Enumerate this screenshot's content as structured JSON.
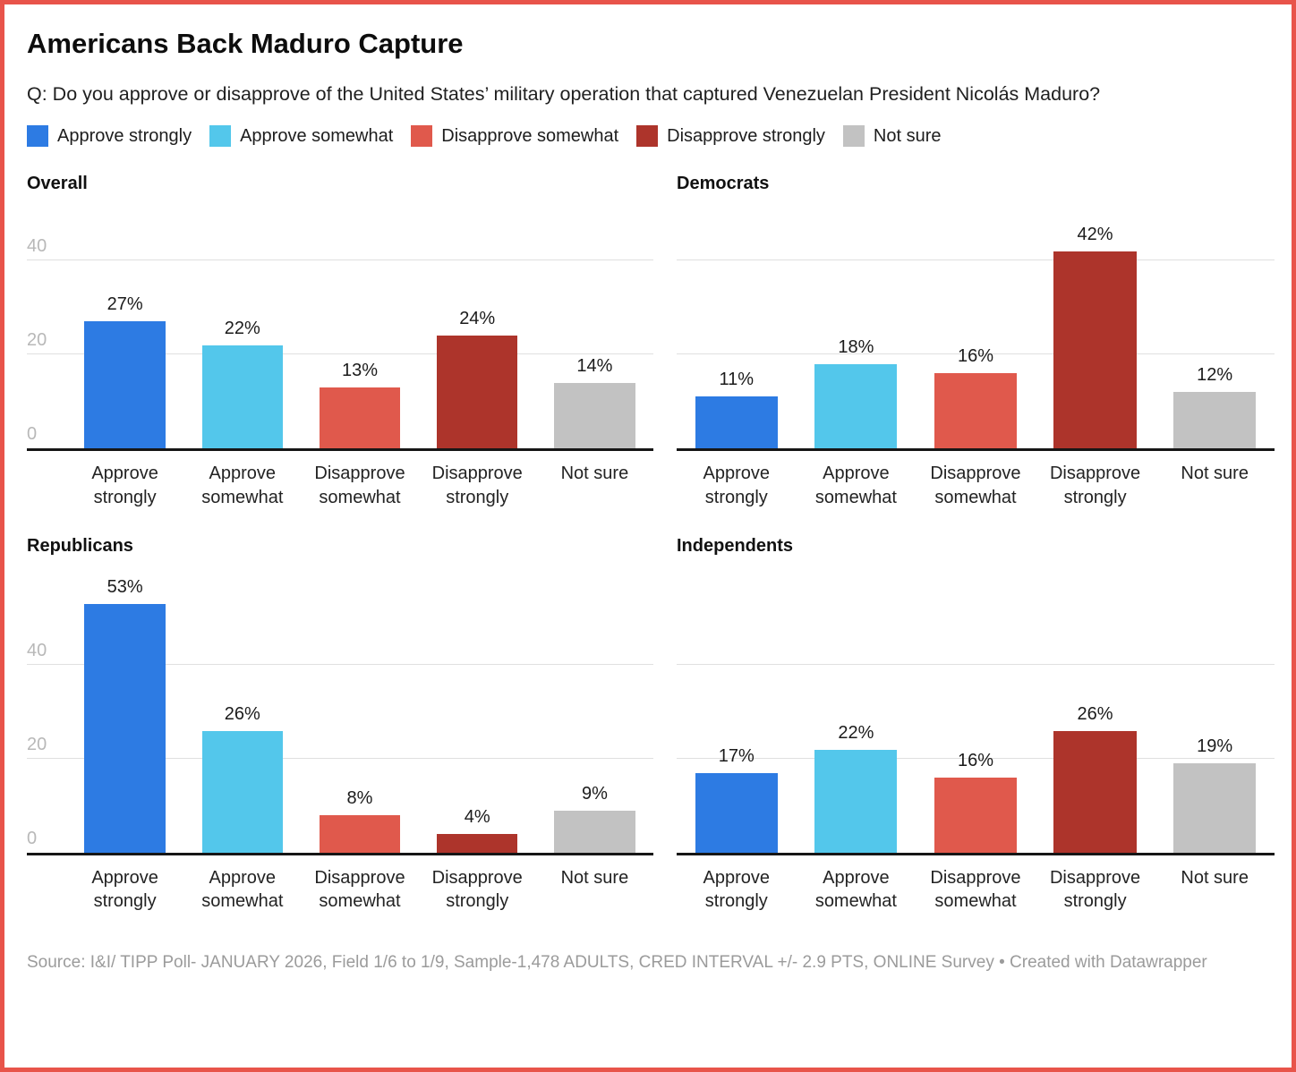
{
  "header": {
    "title": "Americans Back Maduro Capture",
    "subtitle": "Q: Do you approve or disapprove of the United States’ military operation that captured Venezuelan President Nicolás Maduro?"
  },
  "legend": {
    "items": [
      {
        "label": "Approve strongly",
        "color": "#2d7be3"
      },
      {
        "label": "Approve somewhat",
        "color": "#53c7eb"
      },
      {
        "label": "Disapprove somewhat",
        "color": "#e0594c"
      },
      {
        "label": "Disapprove strongly",
        "color": "#ad342b"
      },
      {
        "label": "Not sure",
        "color": "#c2c2c2"
      }
    ]
  },
  "chart_data": [
    {
      "type": "bar",
      "title": "Overall",
      "categories": [
        "Approve strongly",
        "Approve somewhat",
        "Disapprove somewhat",
        "Disapprove strongly",
        "Not sure"
      ],
      "values": [
        27,
        22,
        13,
        24,
        14
      ],
      "value_suffix": "%",
      "yticks": [
        0,
        20,
        40
      ],
      "ylim": [
        0,
        49
      ],
      "grid": true,
      "show_ytick_labels": true,
      "legend_position": "top"
    },
    {
      "type": "bar",
      "title": "Democrats",
      "categories": [
        "Approve strongly",
        "Approve somewhat",
        "Disapprove somewhat",
        "Disapprove strongly",
        "Not sure"
      ],
      "values": [
        11,
        18,
        16,
        42,
        12
      ],
      "value_suffix": "%",
      "yticks": [
        0,
        20,
        40
      ],
      "ylim": [
        0,
        49
      ],
      "grid": true,
      "show_ytick_labels": false,
      "legend_position": "top"
    },
    {
      "type": "bar",
      "title": "Republicans",
      "categories": [
        "Approve strongly",
        "Approve somewhat",
        "Disapprove somewhat",
        "Disapprove strongly",
        "Not sure"
      ],
      "values": [
        53,
        26,
        8,
        4,
        9
      ],
      "value_suffix": "%",
      "yticks": [
        0,
        20,
        40
      ],
      "ylim": [
        0,
        60
      ],
      "grid": true,
      "show_ytick_labels": true,
      "legend_position": "top"
    },
    {
      "type": "bar",
      "title": "Independents",
      "categories": [
        "Approve strongly",
        "Approve somewhat",
        "Disapprove somewhat",
        "Disapprove strongly",
        "Not sure"
      ],
      "values": [
        17,
        22,
        16,
        26,
        19
      ],
      "value_suffix": "%",
      "yticks": [
        0,
        20,
        40
      ],
      "ylim": [
        0,
        60
      ],
      "grid": true,
      "show_ytick_labels": false,
      "legend_position": "top"
    }
  ],
  "footer": {
    "source": "Source: I&I/ TIPP Poll- JANUARY 2026, Field 1/6 to 1/9, Sample-1,478 ADULTS, CRED INTERVAL +/- 2.9 PTS, ONLINE Survey • Created with Datawrapper"
  },
  "colors": {
    "border": "#e8544a",
    "gridline": "#e0e0e0",
    "axis_line": "#161616",
    "ytick_label": "#b8b8b8"
  }
}
